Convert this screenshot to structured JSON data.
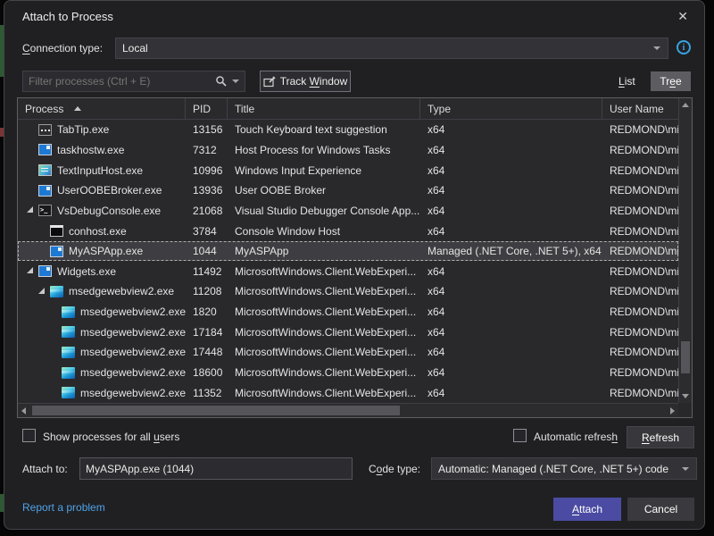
{
  "window": {
    "title": "Attach to Process",
    "close_icon": "✕"
  },
  "connection": {
    "label_pre": "",
    "label_key": "C",
    "label_post": "onnection type:",
    "value": "Local",
    "info_glyph": "i"
  },
  "toolbar": {
    "filter_placeholder": "Filter processes (Ctrl + E)",
    "track_pre": "Track ",
    "track_key": "W",
    "track_post": "indow",
    "list_key": "L",
    "list_post": "ist",
    "tree_pre": "Tr",
    "tree_key": "e",
    "tree_post": "e"
  },
  "table": {
    "columns": [
      "Process",
      "PID",
      "Title",
      "Type",
      "User Name"
    ],
    "rows": [
      {
        "process": "TabTip.exe",
        "pid": "13156",
        "title": "Touch Keyboard text suggestion",
        "type": "x64",
        "user": "REDMOND\\mi",
        "icon": "keyboard",
        "level": 1,
        "expanded": false,
        "selected": false
      },
      {
        "process": "taskhostw.exe",
        "pid": "7312",
        "title": "Host Process for Windows Tasks",
        "type": "x64",
        "user": "REDMOND\\mi",
        "icon": "window",
        "level": 1,
        "expanded": false,
        "selected": false
      },
      {
        "process": "TextInputHost.exe",
        "pid": "10996",
        "title": "Windows Input Experience",
        "type": "x64",
        "user": "REDMOND\\mi",
        "icon": "input",
        "level": 1,
        "expanded": false,
        "selected": false
      },
      {
        "process": "UserOOBEBroker.exe",
        "pid": "13936",
        "title": "User OOBE Broker",
        "type": "x64",
        "user": "REDMOND\\mi",
        "icon": "window",
        "level": 1,
        "expanded": false,
        "selected": false
      },
      {
        "process": "VsDebugConsole.exe",
        "pid": "21068",
        "title": "Visual Studio Debugger Console App...",
        "type": "x64",
        "user": "REDMOND\\mi",
        "icon": "console",
        "level": 1,
        "expanded": true,
        "selected": false
      },
      {
        "process": "conhost.exe",
        "pid": "3784",
        "title": "Console Window Host",
        "type": "x64",
        "user": "REDMOND\\mi",
        "icon": "conhost",
        "level": 2,
        "expanded": false,
        "selected": false
      },
      {
        "process": "MyASPApp.exe",
        "pid": "1044",
        "title": "MyASPApp",
        "type": "Managed (.NET Core, .NET 5+), x64",
        "user": "REDMOND\\mi",
        "icon": "window",
        "level": 2,
        "expanded": false,
        "selected": true
      },
      {
        "process": "Widgets.exe",
        "pid": "11492",
        "title": "MicrosoftWindows.Client.WebExperi...",
        "type": "x64",
        "user": "REDMOND\\mi",
        "icon": "window",
        "level": 1,
        "expanded": true,
        "selected": false
      },
      {
        "process": "msedgewebview2.exe",
        "pid": "11208",
        "title": "MicrosoftWindows.Client.WebExperi...",
        "type": "x64",
        "user": "REDMOND\\mi",
        "icon": "webview",
        "level": 2,
        "expanded": true,
        "selected": false
      },
      {
        "process": "msedgewebview2.exe",
        "pid": "1820",
        "title": "MicrosoftWindows.Client.WebExperi...",
        "type": "x64",
        "user": "REDMOND\\mi",
        "icon": "webview",
        "level": 3,
        "expanded": false,
        "selected": false
      },
      {
        "process": "msedgewebview2.exe",
        "pid": "17184",
        "title": "MicrosoftWindows.Client.WebExperi...",
        "type": "x64",
        "user": "REDMOND\\mi",
        "icon": "webview",
        "level": 3,
        "expanded": false,
        "selected": false
      },
      {
        "process": "msedgewebview2.exe",
        "pid": "17448",
        "title": "MicrosoftWindows.Client.WebExperi...",
        "type": "x64",
        "user": "REDMOND\\mi",
        "icon": "webview",
        "level": 3,
        "expanded": false,
        "selected": false
      },
      {
        "process": "msedgewebview2.exe",
        "pid": "18600",
        "title": "MicrosoftWindows.Client.WebExperi...",
        "type": "x64",
        "user": "REDMOND\\mi",
        "icon": "webview",
        "level": 3,
        "expanded": false,
        "selected": false
      },
      {
        "process": "msedgewebview2.exe",
        "pid": "11352",
        "title": "MicrosoftWindows.Client.WebExperi...",
        "type": "x64",
        "user": "REDMOND\\mi",
        "icon": "webview",
        "level": 3,
        "expanded": false,
        "selected": false
      }
    ]
  },
  "options": {
    "show_pre": "Show processes for all ",
    "show_key": "u",
    "show_post": "sers",
    "auto_pre": "Automatic refres",
    "auto_key": "h",
    "auto_post": "",
    "refresh_key": "R",
    "refresh_post": "efresh"
  },
  "attach_bar": {
    "attach_to_label": "Attach to:",
    "attach_to_value": "MyASPApp.exe (1044)",
    "code_pre": "C",
    "code_key": "o",
    "code_post": "de type:",
    "code_value": "Automatic: Managed (.NET Core, .NET 5+) code"
  },
  "footer": {
    "report_link": "Report a problem",
    "attach_key": "A",
    "attach_post": "ttach",
    "cancel": "Cancel"
  },
  "colors": {
    "accent": "#4b4ba3",
    "link": "#4fa3e8",
    "info": "#38a3e1",
    "selection": "#3e3e42"
  }
}
